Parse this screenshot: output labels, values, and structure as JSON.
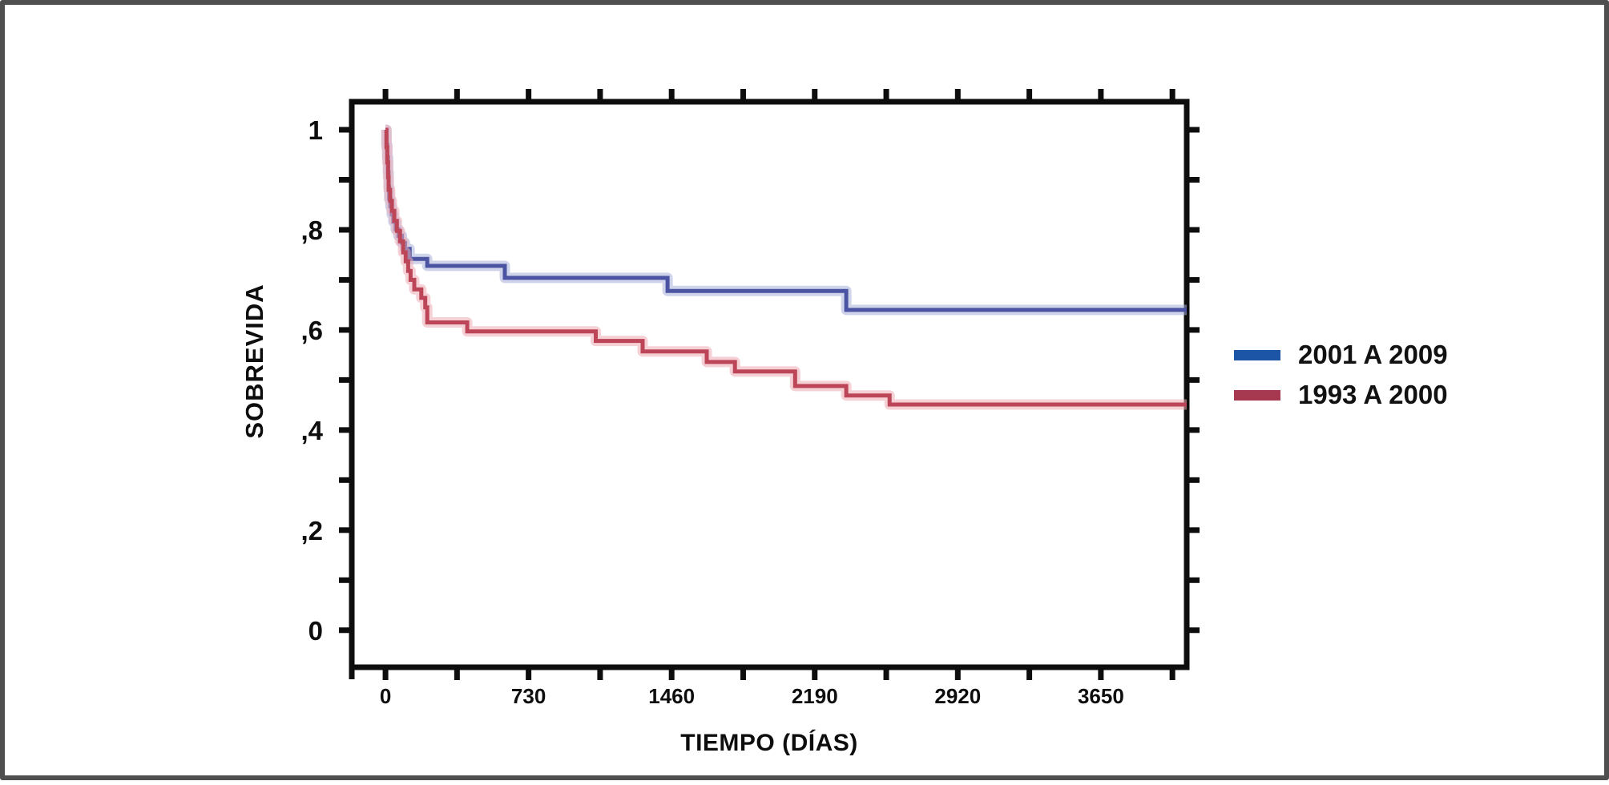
{
  "frame": {
    "border_color": "#4f4f4f",
    "background": "#ffffff",
    "text_color": "#0d0d0d"
  },
  "chart_data": {
    "type": "line",
    "subtype": "kaplan-meier-step-survival",
    "title": "",
    "xlabel": "TIEMPO (DÍAS)",
    "ylabel": "SOBREVIDA",
    "grid": false,
    "legend_position": "right-outside",
    "xlim": [
      -172,
      4088
    ],
    "ylim": [
      -0.074,
      1.056
    ],
    "x_ticks": {
      "values": [
        0,
        730,
        1460,
        2190,
        2920,
        3650
      ],
      "labels": [
        "0",
        "730",
        "1460",
        "2190",
        "2920",
        "3650"
      ],
      "minor_start": 0,
      "minor_end": 4015,
      "minor_interval": 365
    },
    "y_ticks": {
      "values": [
        0,
        0.2,
        0.4,
        0.6,
        0.8,
        1
      ],
      "labels": [
        "0",
        ",2",
        ",4",
        ",6",
        ",8",
        "1"
      ],
      "minor_start": 0,
      "minor_end": 1,
      "minor_interval": 0.1
    },
    "axis_color": "#0d0d0d",
    "series": [
      {
        "name": "2001 A 2009",
        "legend_color": "#1c55a6",
        "line_color": "#4a54a2",
        "halo_color": "#a9b0d8",
        "points": [
          [
            0,
            1.0
          ],
          [
            5,
            0.97
          ],
          [
            9,
            0.945
          ],
          [
            13,
            0.915
          ],
          [
            16,
            0.885
          ],
          [
            19,
            0.862
          ],
          [
            25,
            0.847
          ],
          [
            32,
            0.831
          ],
          [
            40,
            0.816
          ],
          [
            52,
            0.801
          ],
          [
            66,
            0.788
          ],
          [
            84,
            0.774
          ],
          [
            100,
            0.762
          ],
          [
            123,
            0.742
          ],
          [
            213,
            0.728
          ],
          [
            609,
            0.704
          ],
          [
            1439,
            0.678
          ],
          [
            2351,
            0.64
          ],
          [
            4088,
            0.64
          ]
        ]
      },
      {
        "name": "1993 A 2000",
        "legend_color": "#a63850",
        "line_color": "#bc4557",
        "halo_color": "#edacb4",
        "points": [
          [
            0,
            1.0
          ],
          [
            5,
            0.965
          ],
          [
            9,
            0.935
          ],
          [
            13,
            0.905
          ],
          [
            16,
            0.88
          ],
          [
            24,
            0.858
          ],
          [
            33,
            0.838
          ],
          [
            45,
            0.818
          ],
          [
            58,
            0.798
          ],
          [
            74,
            0.777
          ],
          [
            90,
            0.755
          ],
          [
            103,
            0.737
          ],
          [
            116,
            0.718
          ],
          [
            128,
            0.7
          ],
          [
            147,
            0.681
          ],
          [
            183,
            0.664
          ],
          [
            203,
            0.645
          ],
          [
            213,
            0.615
          ],
          [
            417,
            0.597
          ],
          [
            1073,
            0.578
          ],
          [
            1312,
            0.557
          ],
          [
            1639,
            0.536
          ],
          [
            1783,
            0.517
          ],
          [
            2090,
            0.488
          ],
          [
            2351,
            0.469
          ],
          [
            2572,
            0.451
          ],
          [
            4088,
            0.451
          ]
        ]
      }
    ]
  }
}
